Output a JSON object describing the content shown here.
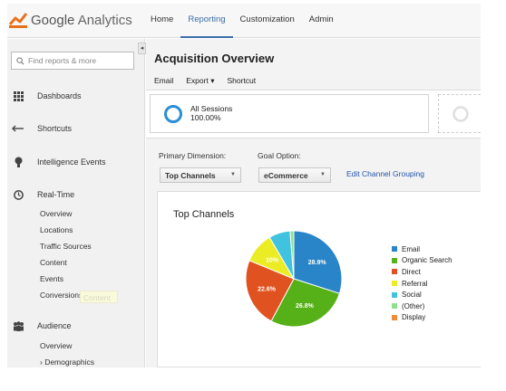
{
  "brand": {
    "name_prefix": "Google",
    "name_suffix": " Analytics"
  },
  "nav": [
    {
      "label": "Home",
      "active": false
    },
    {
      "label": "Reporting",
      "active": true
    },
    {
      "label": "Customization",
      "active": false
    },
    {
      "label": "Admin",
      "active": false
    }
  ],
  "sidebar": {
    "collapse_glyph": "◂",
    "search_placeholder": "Find reports & more",
    "sections": {
      "dashboards": "Dashboards",
      "shortcuts": "Shortcuts",
      "intelligence": "Intelligence Events",
      "realtime": "Real-Time",
      "audience": "Audience"
    },
    "realtime_items": [
      "Overview",
      "Locations",
      "Traffic Sources",
      "Content",
      "Events",
      "Conversions"
    ],
    "audience_items": [
      "Overview",
      "› Demographics"
    ],
    "tooltip_ghost": "Content"
  },
  "main": {
    "title": "Acquisition Overview",
    "toolbar": {
      "email": "Email",
      "export": "Export ▾",
      "shortcut": "Shortcut"
    },
    "segment": {
      "name": "All Sessions",
      "percent": "100.00%"
    },
    "primary_dimension_label": "Primary Dimension:",
    "primary_dimension_value": "Top Channels",
    "goal_option_label": "Goal Option:",
    "goal_option_value": "eCommerce",
    "edit_link": "Edit Channel Grouping",
    "panel_title": "Top Channels"
  },
  "colors": {
    "accent": "#3c6ea8",
    "ring": "#2b8ed6"
  },
  "chart_data": {
    "type": "pie",
    "title": "Top Channels",
    "legend_position": "right",
    "categories": [
      "Email",
      "Organic Search",
      "Direct",
      "Referral",
      "Social",
      "(Other)",
      "Display"
    ],
    "values": [
      28.9,
      26.8,
      22.6,
      10.0,
      6.9,
      1.2,
      0
    ],
    "data_labels": [
      "28.9%",
      "26.8%",
      "22.6%",
      "10%",
      "",
      "",
      ""
    ],
    "colors": [
      "#2a84c8",
      "#56b017",
      "#e05220",
      "#ecec24",
      "#3fc3de",
      "#8ee08e",
      "#f08c38"
    ]
  }
}
